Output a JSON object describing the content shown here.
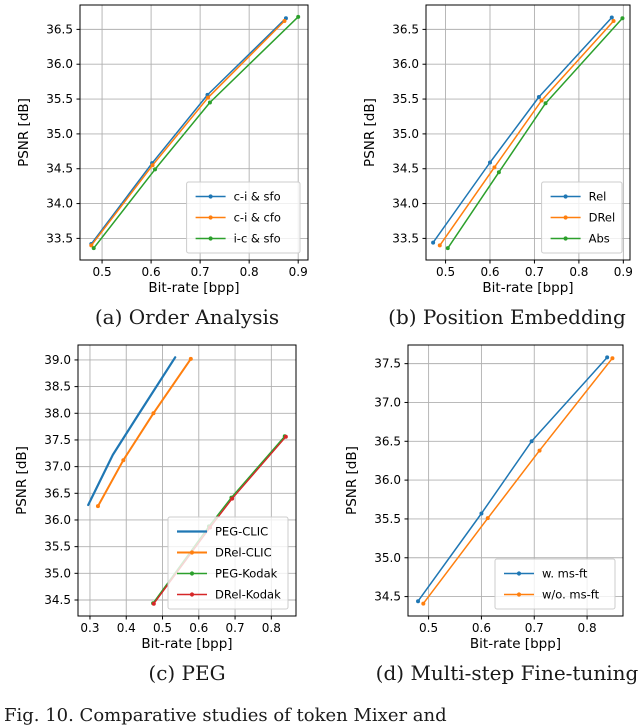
{
  "figure": {
    "caption_fragment": "Fig. 10. Comparative studies of token Mixer and"
  },
  "style": {
    "background": "#ffffff",
    "grid_color": "#b0b0b0",
    "spine_color": "#000000",
    "legend_edge_color": "#cccccc",
    "legend_fill": "rgba(255,255,255,0.8)",
    "text_color": "#000000"
  },
  "chart_data": [
    {
      "type": "line",
      "title": "(a) Order Analysis",
      "xlabel": "Bit-rate [bpp]",
      "ylabel": "PSNR [dB]",
      "xlim": [
        0.455,
        0.92
      ],
      "ylim": [
        33.19,
        36.85
      ],
      "xticks": [
        0.5,
        0.6,
        0.7,
        0.8,
        0.9
      ],
      "yticks": [
        33.5,
        34.0,
        34.5,
        35.0,
        35.5,
        36.0,
        36.5
      ],
      "grid": true,
      "legend_position": "lower right",
      "series": [
        {
          "name": "c-i & sfo",
          "color": "#1f77b4",
          "linewidth": 1.5,
          "marker": true,
          "points": [
            [
              0.478,
              33.42
            ],
            [
              0.602,
              34.58
            ],
            [
              0.715,
              35.56
            ],
            [
              0.875,
              36.66
            ]
          ]
        },
        {
          "name": "c-i & cfo",
          "color": "#ff7f0e",
          "linewidth": 1.5,
          "marker": true,
          "points": [
            [
              0.478,
              33.4
            ],
            [
              0.603,
              34.55
            ],
            [
              0.716,
              35.52
            ],
            [
              0.872,
              36.62
            ]
          ]
        },
        {
          "name": "i-c & sfo",
          "color": "#2ca02c",
          "linewidth": 1.5,
          "marker": true,
          "points": [
            [
              0.483,
              33.36
            ],
            [
              0.608,
              34.49
            ],
            [
              0.72,
              35.45
            ],
            [
              0.9,
              36.68
            ]
          ]
        }
      ]
    },
    {
      "type": "line",
      "title": "(b) Position Embedding",
      "xlabel": "Bit-rate [bpp]",
      "ylabel": "PSNR [dB]",
      "xlim": [
        0.456,
        0.915
      ],
      "ylim": [
        33.19,
        36.85
      ],
      "xticks": [
        0.5,
        0.6,
        0.7,
        0.8,
        0.9
      ],
      "yticks": [
        33.5,
        34.0,
        34.5,
        35.0,
        35.5,
        36.0,
        36.5
      ],
      "grid": true,
      "legend_position": "lower right",
      "series": [
        {
          "name": "Rel",
          "color": "#1f77b4",
          "linewidth": 1.5,
          "marker": true,
          "points": [
            [
              0.472,
              33.44
            ],
            [
              0.6,
              34.59
            ],
            [
              0.71,
              35.53
            ],
            [
              0.874,
              36.67
            ]
          ]
        },
        {
          "name": "DRel",
          "color": "#ff7f0e",
          "linewidth": 1.5,
          "marker": true,
          "points": [
            [
              0.487,
              33.4
            ],
            [
              0.61,
              34.52
            ],
            [
              0.716,
              35.48
            ],
            [
              0.878,
              36.62
            ]
          ]
        },
        {
          "name": "Abs",
          "color": "#2ca02c",
          "linewidth": 1.5,
          "marker": true,
          "points": [
            [
              0.505,
              33.36
            ],
            [
              0.62,
              34.45
            ],
            [
              0.725,
              35.44
            ],
            [
              0.898,
              36.66
            ]
          ]
        }
      ]
    },
    {
      "type": "line",
      "title": "(c) PEG",
      "xlabel": "Bit-rate [bpp]",
      "ylabel": "PSNR [dB]",
      "xlim": [
        0.267,
        0.868
      ],
      "ylim": [
        34.2,
        39.28
      ],
      "xticks": [
        0.3,
        0.4,
        0.5,
        0.6,
        0.7,
        0.8
      ],
      "yticks": [
        34.5,
        35.0,
        35.5,
        36.0,
        36.5,
        37.0,
        37.5,
        38.0,
        38.5,
        39.0
      ],
      "grid": true,
      "legend_position": "lower right",
      "series": [
        {
          "name": "PEG-CLIC",
          "color": "#1f77b4",
          "linewidth": 2.2,
          "marker": false,
          "points": [
            [
              0.295,
              36.28
            ],
            [
              0.363,
              37.22
            ],
            [
              0.432,
              37.96
            ],
            [
              0.535,
              39.05
            ]
          ]
        },
        {
          "name": "DRel-CLIC",
          "color": "#ff7f0e",
          "linewidth": 2.0,
          "marker": true,
          "points": [
            [
              0.322,
              36.26
            ],
            [
              0.392,
              37.12
            ],
            [
              0.475,
              38.0
            ],
            [
              0.578,
              39.02
            ]
          ]
        },
        {
          "name": "PEG-Kodak",
          "color": "#2ca02c",
          "linewidth": 1.4,
          "marker": true,
          "points": [
            [
              0.474,
              34.44
            ],
            [
              0.628,
              35.88
            ],
            [
              0.69,
              36.42
            ],
            [
              0.837,
              37.57
            ]
          ]
        },
        {
          "name": "DRel-Kodak",
          "color": "#d62728",
          "linewidth": 1.4,
          "marker": true,
          "points": [
            [
              0.476,
              34.43
            ],
            [
              0.631,
              35.86
            ],
            [
              0.692,
              36.4
            ],
            [
              0.84,
              37.56
            ]
          ]
        }
      ]
    },
    {
      "type": "line",
      "title": "(d) Multi-step Fine-tuning",
      "xlabel": "Bit-rate [bpp]",
      "ylabel": "PSNR [dB]",
      "xlim": [
        0.461,
        0.868
      ],
      "ylim": [
        34.25,
        37.74
      ],
      "xticks": [
        0.5,
        0.6,
        0.7,
        0.8
      ],
      "yticks": [
        34.5,
        35.0,
        35.5,
        36.0,
        36.5,
        37.0,
        37.5
      ],
      "grid": true,
      "legend_position": "lower right",
      "series": [
        {
          "name": "w. ms-ft",
          "color": "#1f77b4",
          "linewidth": 1.5,
          "marker": true,
          "points": [
            [
              0.48,
              34.44
            ],
            [
              0.6,
              35.57
            ],
            [
              0.695,
              36.5
            ],
            [
              0.838,
              37.58
            ]
          ]
        },
        {
          "name": "w/o. ms-ft",
          "color": "#ff7f0e",
          "linewidth": 1.5,
          "marker": true,
          "points": [
            [
              0.49,
              34.41
            ],
            [
              0.612,
              35.51
            ],
            [
              0.71,
              36.38
            ],
            [
              0.848,
              37.57
            ]
          ]
        }
      ]
    }
  ]
}
